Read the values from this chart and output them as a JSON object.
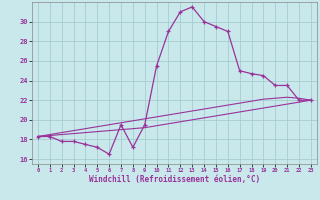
{
  "xlabel": "Windchill (Refroidissement éolien,°C)",
  "background_color": "#c8e8ec",
  "grid_color": "#a0c8cc",
  "line_color": "#993399",
  "hours": [
    0,
    1,
    2,
    3,
    4,
    5,
    6,
    7,
    8,
    9,
    10,
    11,
    12,
    13,
    14,
    15,
    16,
    17,
    18,
    19,
    20,
    21,
    22,
    23
  ],
  "temp_curve": [
    18.3,
    18.3,
    17.8,
    17.8,
    17.5,
    17.2,
    16.5,
    19.5,
    17.2,
    19.5,
    25.5,
    29.0,
    31.0,
    31.5,
    30.0,
    29.5,
    29.0,
    25.0,
    24.7,
    24.5,
    23.5,
    23.5,
    22.0,
    22.0
  ],
  "linear_fit1": [
    18.3,
    18.5,
    18.7,
    18.9,
    19.1,
    19.3,
    19.5,
    19.7,
    19.9,
    20.1,
    20.3,
    20.5,
    20.7,
    20.9,
    21.1,
    21.3,
    21.5,
    21.7,
    21.9,
    22.1,
    22.2,
    22.3,
    22.2,
    22.0
  ],
  "linear_fit2": [
    18.3,
    18.4,
    18.5,
    18.6,
    18.7,
    18.8,
    18.9,
    19.0,
    19.1,
    19.2,
    19.4,
    19.6,
    19.8,
    20.0,
    20.2,
    20.4,
    20.6,
    20.8,
    21.0,
    21.2,
    21.4,
    21.6,
    21.8,
    22.0
  ],
  "ylim": [
    15.5,
    32.0
  ],
  "yticks": [
    16,
    18,
    20,
    22,
    24,
    26,
    28,
    30
  ],
  "xlim": [
    -0.5,
    23.5
  ],
  "xticks": [
    0,
    1,
    2,
    3,
    4,
    5,
    6,
    7,
    8,
    9,
    10,
    11,
    12,
    13,
    14,
    15,
    16,
    17,
    18,
    19,
    20,
    21,
    22,
    23
  ]
}
